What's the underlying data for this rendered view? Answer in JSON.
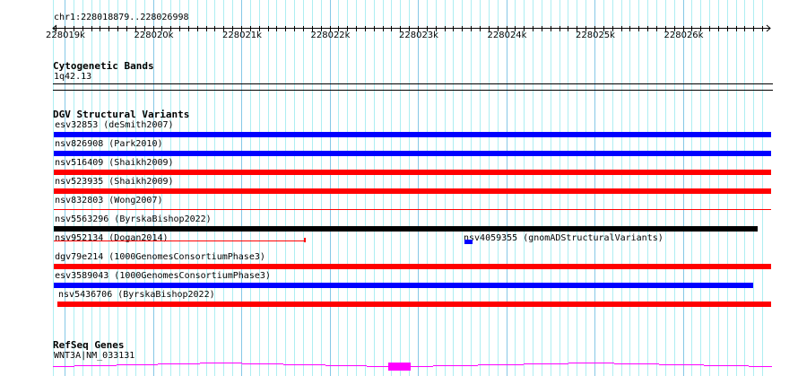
{
  "view": {
    "chrom": "chr1",
    "start": 228018879,
    "end": 228026998,
    "location_label": "chr1:228018879..228026998"
  },
  "ruler": {
    "labels": [
      "228019k",
      "228020k",
      "228021k",
      "228022k",
      "228023k",
      "228024k",
      "228025k",
      "228026k"
    ],
    "label_positions": [
      228019000,
      228020000,
      228021000,
      228022000,
      228023000,
      228024000,
      228025000,
      228026000
    ]
  },
  "colors": {
    "grid_minor": "#aeeef2",
    "grid_major": "#86c8e6",
    "loss": "#ff0000",
    "gain": "#0000ff",
    "complex": "#000000",
    "gene": "#ff00ff"
  },
  "tracks": {
    "cytobands": {
      "title": "Cytogenetic Bands",
      "band_label": "1q42.13"
    },
    "dgv": {
      "title": "DGV Structural Variants",
      "features": [
        {
          "label": "esv32853 (deSmith2007)",
          "start": 228018879,
          "end": 228026998,
          "color": "#0000ff",
          "style": "thick",
          "row": 0
        },
        {
          "label": "nsv826908 (Park2010)",
          "start": 228018879,
          "end": 228026998,
          "color": "#0000ff",
          "style": "thick",
          "row": 1
        },
        {
          "label": "nsv516409 (Shaikh2009)",
          "start": 228018879,
          "end": 228026998,
          "color": "#ff0000",
          "style": "thick",
          "row": 2
        },
        {
          "label": "nsv523935 (Shaikh2009)",
          "start": 228018879,
          "end": 228026998,
          "color": "#ff0000",
          "style": "thick",
          "row": 3
        },
        {
          "label": "nsv832803 (Wong2007)",
          "start": 228018879,
          "end": 228026998,
          "color": "#ff0000",
          "style": "thin",
          "row": 4
        },
        {
          "label": "nsv5563296 (ByrskaBishop2022)",
          "start": 228018879,
          "end": 228026848,
          "color": "#000000",
          "style": "thick",
          "row": 5
        },
        {
          "label": "nsv952134 (Dogan2014)",
          "start": 228018879,
          "end": 228021721,
          "color": "#ff0000",
          "style": "thinend",
          "row": 6
        },
        {
          "label": "nsv4059355 (gnomADStructuralVariants)",
          "start": 228023528,
          "end": 228023619,
          "color": "#0000ff",
          "style": "box",
          "row": 6
        },
        {
          "label": "dgv79e214 (1000GenomesConsortiumPhase3)",
          "start": 228018879,
          "end": 228026998,
          "color": "#ff0000",
          "style": "thick",
          "row": 7
        },
        {
          "label": "esv3589043 (1000GenomesConsortiumPhase3)",
          "start": 228018879,
          "end": 228026797,
          "color": "#0000ff",
          "style": "thick",
          "row": 8
        },
        {
          "label": "nsv5436706 (ByrskaBishop2022)",
          "start": 228018919,
          "end": 228026998,
          "color": "#ff0000",
          "style": "thick",
          "row": 9
        }
      ]
    },
    "refseq": {
      "title": "RefSeq Genes",
      "gene_label": "WNT3A|NM_033131",
      "exon_start": 228022665,
      "exon_end": 228022919
    }
  }
}
